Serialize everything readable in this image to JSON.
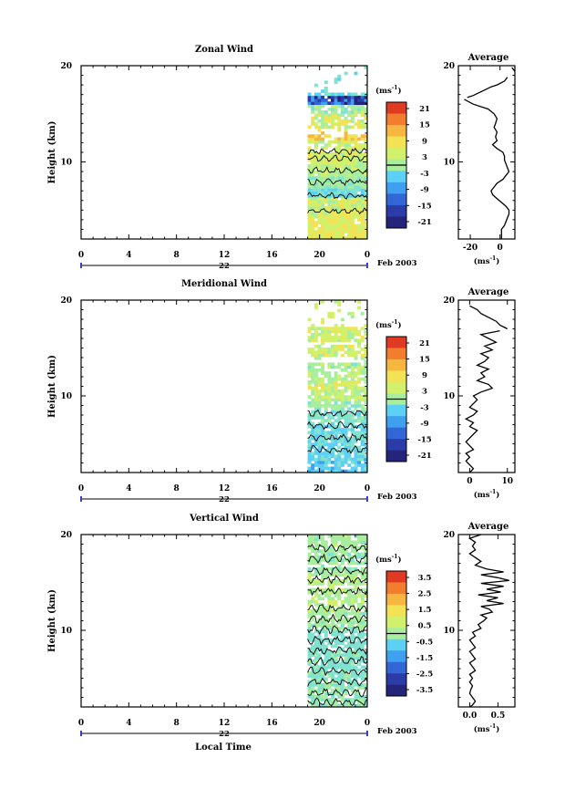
{
  "footer": {
    "xlabel": "Local Time"
  },
  "chart_data": [
    {
      "type": "heatmap",
      "title": "Zonal Wind",
      "ylabel": "Height (km)",
      "xlim": [
        0,
        24
      ],
      "ylim": [
        2,
        20
      ],
      "x_ticks": [
        "0",
        "4",
        "8",
        "12",
        "16",
        "20",
        "0"
      ],
      "y_ticks": [
        "20",
        "10"
      ],
      "date_label": "22",
      "date_suffix": "Feb 2003",
      "data_window": [
        19,
        24
      ],
      "colorbar": {
        "unit": "(ms",
        "unit_exp": "-1",
        "unit_close": ")",
        "ticks": [
          "21",
          "15",
          "9",
          "3",
          "-3",
          "-9",
          "-15",
          "-21"
        ],
        "min": -24,
        "max": 24
      },
      "gap_bands": [
        [
          12.9,
          13.5
        ],
        [
          17.3,
          20
        ]
      ],
      "profile_bands": [
        [
          17.5,
          -4,
          4,
          0.25
        ],
        [
          16.5,
          -17,
          9,
          0.9
        ],
        [
          15.7,
          2,
          3,
          0.6
        ],
        [
          14.6,
          6,
          5,
          0.5
        ],
        [
          13.8,
          7,
          4,
          0.5
        ],
        [
          12.7,
          12,
          3,
          0.5
        ],
        [
          11.6,
          6,
          4,
          0.6
        ],
        [
          10.2,
          6,
          3,
          0.6
        ],
        [
          9.1,
          4,
          4,
          0.6
        ],
        [
          7.8,
          1,
          3,
          0.7
        ],
        [
          6.6,
          -3,
          3,
          0.5
        ],
        [
          5.8,
          6,
          4,
          0.6
        ],
        [
          4.7,
          7,
          4,
          0.6
        ],
        [
          3.6,
          8,
          4,
          0.5
        ],
        [
          2.6,
          8,
          3,
          0.6
        ]
      ],
      "contours": [
        11.1,
        10.4,
        9.1,
        7.9,
        6.5,
        4.9
      ],
      "contour_amp": 0.35,
      "seed": 11,
      "average": {
        "title": "Average",
        "xlim": [
          -28,
          10
        ],
        "ticks": [
          -20,
          0
        ],
        "tick_labels": [
          "-20",
          "0"
        ],
        "xlabel": "(ms",
        "xlabel_exp": "-1",
        "xlabel_close": ")",
        "segments": [
          {
            "h": [
              18.8,
              18.4,
              18.0,
              17.8,
              17.5,
              17.2,
              16.9,
              16.7
            ],
            "v": [
              5,
              3,
              -2,
              -6,
              -10,
              -14,
              -18,
              -22
            ]
          },
          {
            "h": [
              19.8,
              19.6,
              19.4
            ],
            "v": [
              8,
              9,
              10
            ]
          },
          {
            "h": [
              16.5,
              16.0,
              15.5,
              15.0,
              14.5,
              14.0,
              13.6,
              13.1,
              12.6,
              12.2,
              11.8,
              11.4,
              11.0,
              10.6,
              10.2,
              9.8,
              9.4,
              9.0,
              8.6,
              8.2,
              7.8,
              7.4,
              7.0,
              6.6,
              6.2,
              5.8,
              5.4,
              5.0,
              4.6,
              4.2,
              3.8,
              3.4,
              3.0,
              2.6,
              2.2,
              2.0
            ],
            "v": [
              -24,
              -18,
              -8,
              -4,
              -2,
              -3,
              -4,
              -2,
              -3,
              -2,
              -5,
              -2,
              2,
              3,
              3,
              4,
              5,
              6,
              4,
              2,
              -2,
              -4,
              -6,
              -5,
              -2,
              1,
              4,
              6,
              6,
              5,
              4,
              3,
              1,
              1,
              1,
              1
            ]
          }
        ]
      }
    },
    {
      "type": "heatmap",
      "title": "Meridional Wind",
      "ylabel": "Height (km)",
      "xlim": [
        0,
        24
      ],
      "ylim": [
        2,
        20
      ],
      "x_ticks": [
        "0",
        "4",
        "8",
        "12",
        "16",
        "20",
        "0"
      ],
      "y_ticks": [
        "20",
        "10"
      ],
      "date_label": "22",
      "date_suffix": "Feb 2003",
      "data_window": [
        19,
        24
      ],
      "colorbar": {
        "unit": "(ms",
        "unit_exp": "-1",
        "unit_close": ")",
        "ticks": [
          "21",
          "15",
          "9",
          "3",
          "-3",
          "-9",
          "-15",
          "-21"
        ],
        "min": -24,
        "max": 24
      },
      "gap_bands": [
        [
          13.6,
          14.0
        ],
        [
          15.3,
          15.8
        ],
        [
          17.2,
          20
        ]
      ],
      "profile_bands": [
        [
          16.6,
          6,
          3,
          0.7
        ],
        [
          14.8,
          6,
          3,
          0.5
        ],
        [
          13.2,
          2,
          3,
          0.6
        ],
        [
          12.2,
          4,
          3,
          0.6
        ],
        [
          11.2,
          6,
          4,
          0.6
        ],
        [
          10.1,
          4,
          4,
          0.6
        ],
        [
          9.0,
          1,
          3,
          0.6
        ],
        [
          7.9,
          -2,
          3,
          0.6
        ],
        [
          6.7,
          -4,
          3,
          0.6
        ],
        [
          5.6,
          -3,
          3,
          0.6
        ],
        [
          4.3,
          -5,
          3,
          0.6
        ],
        [
          3.0,
          -6,
          3,
          0.6
        ]
      ],
      "contours": [
        8.2,
        6.9,
        5.6,
        4.4
      ],
      "contour_amp": 0.4,
      "seed": 29,
      "average": {
        "title": "Average",
        "xlim": [
          -3,
          12
        ],
        "ticks": [
          0,
          10
        ],
        "tick_labels": [
          "0",
          "10"
        ],
        "xlabel": "(ms",
        "xlabel_exp": "-1",
        "xlabel_close": ")",
        "segments": [
          {
            "h": [
              19.4,
              19.0,
              18.6,
              18.2,
              17.8,
              17.4,
              17.0
            ],
            "v": [
              0,
              2,
              3,
              5,
              7,
              8,
              10
            ]
          },
          {
            "h": [
              16.8,
              16.4,
              16.0,
              15.6,
              15.2,
              14.8,
              14.4,
              14.0,
              13.6,
              13.2,
              12.8,
              12.4,
              12.0,
              11.6,
              11.2,
              10.8,
              10.4,
              10.0,
              9.6,
              9.2,
              8.8,
              8.4,
              8.0,
              7.6,
              7.2,
              6.8,
              6.4,
              6.0,
              5.6,
              5.2,
              4.8,
              4.4,
              4.0,
              3.6,
              3.2,
              2.8,
              2.4,
              2.0
            ],
            "v": [
              8,
              3,
              5,
              7,
              4,
              6,
              3,
              5,
              4,
              2,
              5,
              3,
              4,
              2,
              5,
              6,
              3,
              1,
              2,
              1,
              0,
              2,
              1,
              -1,
              1,
              0,
              2,
              1,
              0,
              -1,
              0,
              1,
              -1,
              0,
              -1,
              0,
              1,
              0
            ]
          }
        ]
      }
    },
    {
      "type": "heatmap",
      "title": "Vertical Wind",
      "ylabel": "Height (km)",
      "xlim": [
        0,
        24
      ],
      "ylim": [
        2,
        20
      ],
      "x_ticks": [
        "0",
        "4",
        "8",
        "12",
        "16",
        "20",
        "0"
      ],
      "y_ticks": [
        "20",
        "10"
      ],
      "date_label": "22",
      "date_suffix": "Feb 2003",
      "data_window": [
        19,
        24
      ],
      "colorbar": {
        "unit": "(ms",
        "unit_exp": "-1",
        "unit_close": ")",
        "ticks": [
          "3.5",
          "2.5",
          "1.5",
          "0.5",
          "-0.5",
          "-1.5",
          "-2.5",
          "-3.5"
        ],
        "min": -4,
        "max": 4
      },
      "gap_bands": [
        [
          16.6,
          17.0
        ],
        [
          14.5,
          14.8
        ]
      ],
      "profile_bands": [
        [
          19.0,
          0.3,
          0.4,
          0.6
        ],
        [
          17.0,
          0.2,
          0.4,
          0.6
        ],
        [
          15.0,
          0.5,
          0.4,
          0.6
        ],
        [
          13.0,
          0.5,
          0.4,
          0.6
        ],
        [
          11.0,
          0.2,
          0.3,
          0.6
        ],
        [
          9.0,
          -0.3,
          0.3,
          0.6
        ],
        [
          7.0,
          -0.2,
          0.3,
          0.6
        ],
        [
          5.0,
          -0.1,
          0.3,
          0.6
        ],
        [
          3.0,
          0.0,
          0.3,
          0.6
        ]
      ],
      "contours": [
        12.3,
        11.2,
        10.1,
        9.0,
        7.9,
        6.8,
        5.7,
        4.6,
        3.5,
        2.5,
        18.6,
        17.5,
        16.2,
        15.3,
        14.1
      ],
      "contour_amp": 0.45,
      "seed": 47,
      "average": {
        "title": "Average",
        "xlim": [
          -0.2,
          0.8
        ],
        "ticks": [
          0.0,
          0.5
        ],
        "tick_labels": [
          "0.0",
          "0.5"
        ],
        "xlabel": "(ms",
        "xlabel_exp": "-1",
        "xlabel_close": ")",
        "segments": [
          {
            "h": [
              20.0,
              19.6,
              19.2,
              18.8,
              18.4,
              18.0,
              17.6,
              17.2,
              16.8,
              16.4,
              16.1,
              15.8,
              15.5,
              15.2,
              14.9,
              14.6,
              14.3,
              14.0,
              13.7,
              13.4,
              13.1,
              12.8,
              12.5,
              12.2,
              11.9,
              11.6,
              11.3,
              11.0,
              10.6,
              10.2,
              9.8,
              9.4,
              9.0,
              8.6,
              8.2,
              7.8,
              7.4,
              7.0,
              6.6,
              6.2,
              5.8,
              5.4,
              5.0,
              4.6,
              4.2,
              3.8,
              3.4,
              3.0,
              2.6,
              2.2,
              2.0
            ],
            "v": [
              0.2,
              0.0,
              0.1,
              0.05,
              0.1,
              0.0,
              0.1,
              0.2,
              0.1,
              0.3,
              0.6,
              0.2,
              0.5,
              0.7,
              0.2,
              0.6,
              0.3,
              0.55,
              0.15,
              0.5,
              0.3,
              0.6,
              0.2,
              0.35,
              0.4,
              0.2,
              0.3,
              0.25,
              0.15,
              0.2,
              0.05,
              0.1,
              0.0,
              0.05,
              0.1,
              0.0,
              0.05,
              0.1,
              0.0,
              0.05,
              0.1,
              0.0,
              0.05,
              0.0,
              0.05,
              0.02,
              0.0,
              0.05,
              0.1,
              0.05,
              0.0
            ]
          }
        ]
      }
    }
  ]
}
